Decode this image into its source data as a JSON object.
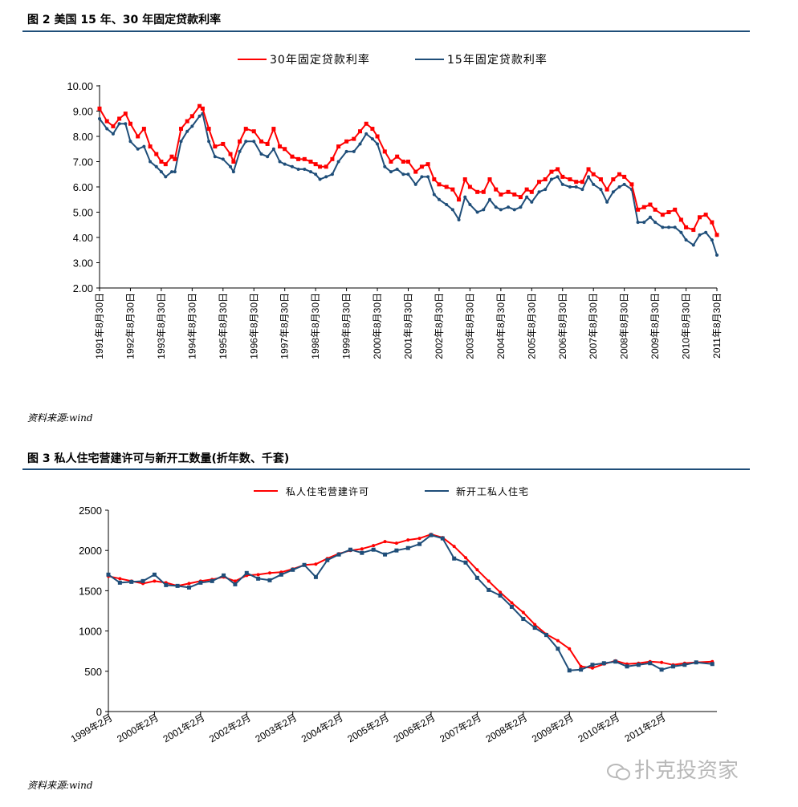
{
  "figure2": {
    "title": "图 2  美国 15 年、30 年固定贷款利率",
    "source": "资料来源:wind",
    "chart_data": {
      "type": "line",
      "title": "",
      "ylim": [
        2.0,
        10.0
      ],
      "yticks": [
        "10.00",
        "9.00",
        "8.00",
        "7.00",
        "6.00",
        "5.00",
        "4.00",
        "3.00",
        "2.00"
      ],
      "ytick_values": [
        10,
        9,
        8,
        7,
        6,
        5,
        4,
        3,
        2
      ],
      "xlim": [
        1991.66,
        2011.66
      ],
      "categories": [
        "1991年8月30日",
        "1992年8月30日",
        "1993年8月30日",
        "1994年8月30日",
        "1995年8月30日",
        "1996年8月30日",
        "1997年8月30日",
        "1998年8月30日",
        "1999年8月30日",
        "2000年8月30日",
        "2001年8月30日",
        "2002年8月30日",
        "2003年8月30日",
        "2004年8月30日",
        "2005年8月30日",
        "2006年8月30日",
        "2007年8月30日",
        "2008年8月30日",
        "2009年8月30日",
        "2010年8月30日",
        "2011年8月30日"
      ],
      "x": [
        1991.66,
        1991.9,
        1992.1,
        1992.3,
        1992.5,
        1992.66,
        1992.9,
        1993.1,
        1993.3,
        1993.5,
        1993.66,
        1993.8,
        1994.0,
        1994.1,
        1994.3,
        1994.5,
        1994.66,
        1994.9,
        1995.0,
        1995.2,
        1995.4,
        1995.66,
        1995.9,
        1996.0,
        1996.2,
        1996.4,
        1996.66,
        1996.9,
        1997.1,
        1997.3,
        1997.5,
        1997.66,
        1997.9,
        1998.1,
        1998.3,
        1998.5,
        1998.66,
        1998.8,
        1999.0,
        1999.2,
        1999.4,
        1999.66,
        1999.9,
        2000.1,
        2000.3,
        2000.5,
        2000.66,
        2000.9,
        2001.1,
        2001.3,
        2001.5,
        2001.66,
        2001.9,
        2002.1,
        2002.3,
        2002.5,
        2002.66,
        2002.9,
        2003.1,
        2003.3,
        2003.5,
        2003.66,
        2003.9,
        2004.1,
        2004.3,
        2004.5,
        2004.66,
        2004.9,
        2005.1,
        2005.3,
        2005.5,
        2005.66,
        2005.9,
        2006.1,
        2006.3,
        2006.5,
        2006.66,
        2006.9,
        2007.1,
        2007.3,
        2007.5,
        2007.66,
        2007.9,
        2008.1,
        2008.3,
        2008.5,
        2008.66,
        2008.9,
        2009.1,
        2009.3,
        2009.5,
        2009.66,
        2009.9,
        2010.1,
        2010.3,
        2010.5,
        2010.66,
        2010.9,
        2011.1,
        2011.3,
        2011.5,
        2011.66
      ],
      "series": [
        {
          "name": "30年固定贷款利率",
          "color": "#ff0000",
          "values": [
            9.1,
            8.6,
            8.4,
            8.7,
            8.9,
            8.5,
            8.0,
            8.3,
            7.6,
            7.3,
            7.0,
            6.9,
            7.2,
            7.1,
            8.3,
            8.6,
            8.8,
            9.2,
            9.1,
            8.3,
            7.6,
            7.7,
            7.3,
            7.0,
            7.8,
            8.3,
            8.2,
            7.8,
            7.7,
            8.3,
            7.6,
            7.5,
            7.2,
            7.1,
            7.1,
            7.0,
            6.9,
            6.8,
            6.8,
            7.1,
            7.6,
            7.8,
            7.9,
            8.2,
            8.5,
            8.3,
            8.0,
            7.4,
            7.0,
            7.2,
            7.0,
            7.0,
            6.6,
            6.8,
            6.9,
            6.3,
            6.1,
            6.0,
            5.9,
            5.5,
            6.3,
            6.0,
            5.8,
            5.8,
            6.3,
            5.9,
            5.7,
            5.8,
            5.7,
            5.6,
            5.9,
            5.8,
            6.2,
            6.3,
            6.6,
            6.7,
            6.4,
            6.3,
            6.2,
            6.2,
            6.7,
            6.5,
            6.3,
            5.9,
            6.3,
            6.5,
            6.4,
            6.1,
            5.1,
            5.2,
            5.3,
            5.1,
            4.9,
            5.0,
            5.1,
            4.7,
            4.4,
            4.3,
            4.8,
            4.9,
            4.6,
            4.1
          ]
        },
        {
          "name": "15年固定贷款利率",
          "color": "#1f4e79",
          "values": [
            8.7,
            8.3,
            8.1,
            8.5,
            8.5,
            7.8,
            7.5,
            7.6,
            7.0,
            6.8,
            6.6,
            6.4,
            6.6,
            6.6,
            7.8,
            8.2,
            8.4,
            8.8,
            8.9,
            7.8,
            7.2,
            7.1,
            6.8,
            6.6,
            7.4,
            7.8,
            7.8,
            7.3,
            7.2,
            7.5,
            7.0,
            6.9,
            6.8,
            6.7,
            6.7,
            6.6,
            6.5,
            6.3,
            6.4,
            6.5,
            7.0,
            7.4,
            7.4,
            7.7,
            8.1,
            7.9,
            7.7,
            6.8,
            6.6,
            6.7,
            6.5,
            6.5,
            6.1,
            6.4,
            6.4,
            5.7,
            5.5,
            5.3,
            5.1,
            4.7,
            5.6,
            5.3,
            5.0,
            5.1,
            5.5,
            5.2,
            5.1,
            5.2,
            5.1,
            5.2,
            5.6,
            5.4,
            5.8,
            5.9,
            6.3,
            6.4,
            6.1,
            6.0,
            6.0,
            5.9,
            6.4,
            6.1,
            5.9,
            5.4,
            5.8,
            6.0,
            6.1,
            5.9,
            4.6,
            4.6,
            4.8,
            4.6,
            4.4,
            4.4,
            4.4,
            4.2,
            3.9,
            3.7,
            4.1,
            4.2,
            3.9,
            3.3
          ]
        }
      ],
      "legend": "top-center",
      "grid": false
    }
  },
  "figure3": {
    "title": "图 3  私人住宅营建许可与新开工数量(折年数、千套)",
    "source": "资料来源:wind",
    "chart_data": {
      "type": "line",
      "ylim": [
        0,
        2500
      ],
      "yticks": [
        "2500",
        "2000",
        "1500",
        "1000",
        "500",
        "0"
      ],
      "ytick_values": [
        2500,
        2000,
        1500,
        1000,
        500,
        0
      ],
      "xlim": [
        1999.0,
        2012.2
      ],
      "categories": [
        "1999年2月",
        "2000年2月",
        "2001年2月",
        "2002年2月",
        "2003年2月",
        "2004年2月",
        "2005年2月",
        "2006年2月",
        "2007年2月",
        "2008年2月",
        "2009年2月",
        "2010年2月",
        "2011年2月"
      ],
      "x": [
        1999.0,
        1999.25,
        1999.5,
        1999.75,
        2000.0,
        2000.25,
        2000.5,
        2000.75,
        2001.0,
        2001.25,
        2001.5,
        2001.75,
        2002.0,
        2002.25,
        2002.5,
        2002.75,
        2003.0,
        2003.25,
        2003.5,
        2003.75,
        2004.0,
        2004.25,
        2004.5,
        2004.75,
        2005.0,
        2005.25,
        2005.5,
        2005.75,
        2006.0,
        2006.25,
        2006.5,
        2006.75,
        2007.0,
        2007.25,
        2007.5,
        2007.75,
        2008.0,
        2008.25,
        2008.5,
        2008.75,
        2009.0,
        2009.25,
        2009.5,
        2009.75,
        2010.0,
        2010.25,
        2010.5,
        2010.75,
        2011.0,
        2011.25,
        2011.5,
        2011.75,
        2012.1
      ],
      "series": [
        {
          "name": "私人住宅营建许可",
          "color": "#ff0000",
          "values": [
            1680,
            1650,
            1620,
            1590,
            1620,
            1600,
            1560,
            1590,
            1620,
            1640,
            1670,
            1620,
            1690,
            1700,
            1720,
            1730,
            1770,
            1820,
            1830,
            1900,
            1960,
            2000,
            2020,
            2060,
            2110,
            2090,
            2130,
            2150,
            2200,
            2160,
            2050,
            1910,
            1760,
            1620,
            1480,
            1350,
            1230,
            1080,
            960,
            880,
            780,
            560,
            540,
            590,
            630,
            590,
            600,
            620,
            610,
            580,
            600,
            610,
            620
          ]
        },
        {
          "name": "新开工私人住宅",
          "color": "#1f4e79",
          "values": [
            1700,
            1600,
            1610,
            1620,
            1700,
            1570,
            1560,
            1540,
            1600,
            1620,
            1690,
            1580,
            1720,
            1650,
            1630,
            1700,
            1760,
            1820,
            1670,
            1880,
            1950,
            2010,
            1970,
            2010,
            1950,
            2000,
            2030,
            2080,
            2190,
            2150,
            1900,
            1850,
            1660,
            1510,
            1440,
            1300,
            1150,
            1040,
            950,
            780,
            510,
            520,
            580,
            600,
            620,
            560,
            580,
            600,
            520,
            560,
            580,
            610,
            590
          ]
        }
      ],
      "legend": "top-center",
      "grid": false
    }
  },
  "watermark": {
    "text": "扑克投资家"
  }
}
